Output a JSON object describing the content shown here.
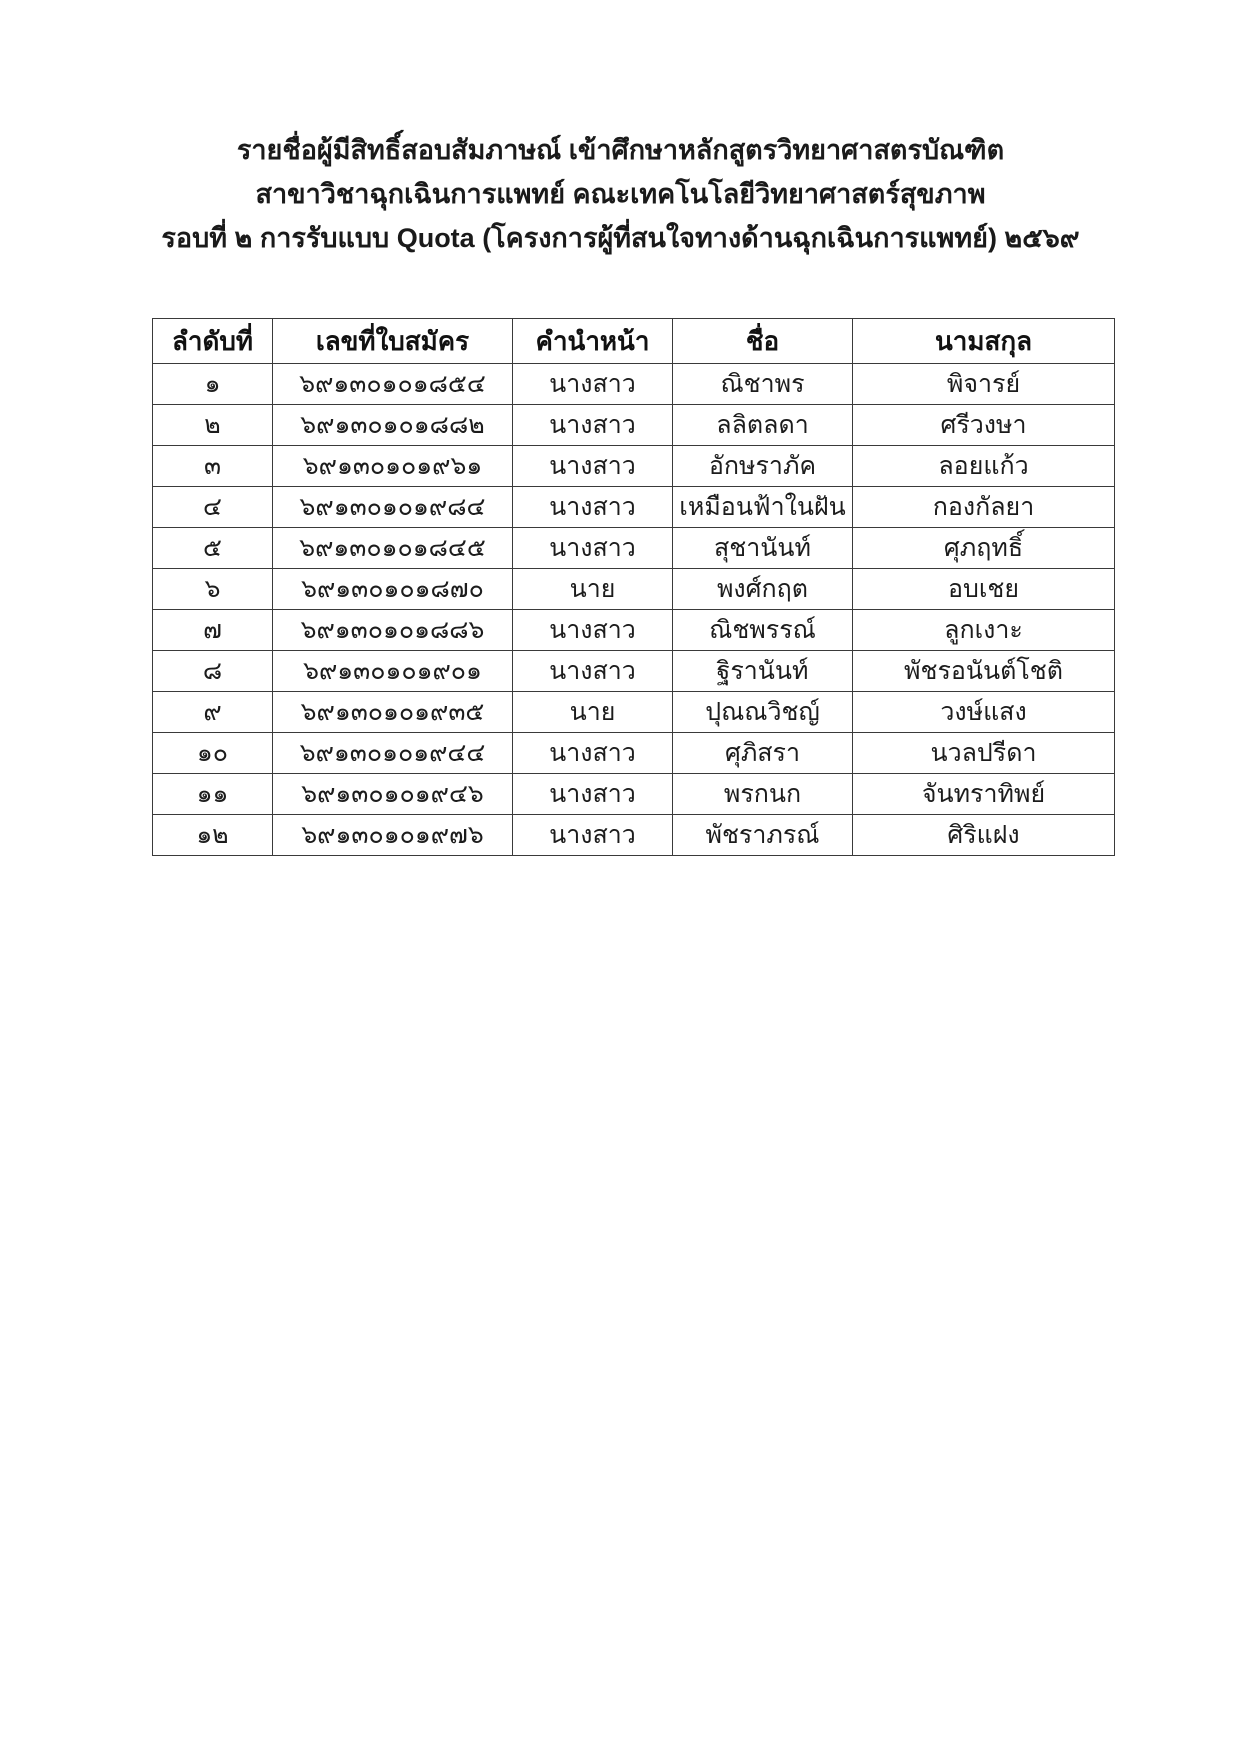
{
  "document": {
    "title_lines": [
      "รายชื่อผู้มีสิทธิ์สอบสัมภาษณ์ เข้าศึกษาหลักสูตรวิทยาศาสตรบัณฑิต",
      "สาขาวิชาฉุกเฉินการแพทย์ คณะเทคโนโลยีวิทยาศาสตร์สุขภาพ",
      "รอบที่ ๒ การรับแบบ Quota (โครงการผู้ที่สนใจทางด้านฉุกเฉินการแพทย์) ๒๕๖๙"
    ]
  },
  "table": {
    "headers": [
      "ลำดับที่",
      "เลขที่ใบสมัคร",
      "คำนำหน้า",
      "ชื่อ",
      "นามสกุล"
    ],
    "rows": [
      {
        "order": "๑",
        "application_no": "๖๙๑๓๐๑๐๑๘๕๔",
        "prefix": "นางสาว",
        "first_name": "ณิชาพร",
        "last_name": "พิจารย์"
      },
      {
        "order": "๒",
        "application_no": "๖๙๑๓๐๑๐๑๘๘๒",
        "prefix": "นางสาว",
        "first_name": "ลลิตลดา",
        "last_name": "ศรีวงษา"
      },
      {
        "order": "๓",
        "application_no": "๖๙๑๓๐๑๐๑๙๖๑",
        "prefix": "นางสาว",
        "first_name": "อักษราภัค",
        "last_name": "ลอยแก้ว"
      },
      {
        "order": "๔",
        "application_no": "๖๙๑๓๐๑๐๑๙๘๔",
        "prefix": "นางสาว",
        "first_name": "เหมือนฟ้าในฝัน",
        "last_name": "กองกัลยา"
      },
      {
        "order": "๕",
        "application_no": "๖๙๑๓๐๑๐๑๘๔๕",
        "prefix": "นางสาว",
        "first_name": "สุชานันท์",
        "last_name": "ศุภฤทธิ์"
      },
      {
        "order": "๖",
        "application_no": "๖๙๑๓๐๑๐๑๘๗๐",
        "prefix": "นาย",
        "first_name": "พงศ์กฤต",
        "last_name": "อบเชย"
      },
      {
        "order": "๗",
        "application_no": "๖๙๑๓๐๑๐๑๘๘๖",
        "prefix": "นางสาว",
        "first_name": "ณิชพรรณ์",
        "last_name": "ลูกเงาะ"
      },
      {
        "order": "๘",
        "application_no": "๖๙๑๓๐๑๐๑๙๐๑",
        "prefix": "นางสาว",
        "first_name": "ฐิรานันท์",
        "last_name": "พัชรอนันต์โชติ"
      },
      {
        "order": "๙",
        "application_no": "๖๙๑๓๐๑๐๑๙๓๕",
        "prefix": "นาย",
        "first_name": "ปุณณวิชญ์",
        "last_name": "วงษ์แสง"
      },
      {
        "order": "๑๐",
        "application_no": "๖๙๑๓๐๑๐๑๙๔๔",
        "prefix": "นางสาว",
        "first_name": "ศุภิสรา",
        "last_name": "นวลปรีดา"
      },
      {
        "order": "๑๑",
        "application_no": "๖๙๑๓๐๑๐๑๙๔๖",
        "prefix": "นางสาว",
        "first_name": "พรกนก",
        "last_name": "จันทราทิพย์"
      },
      {
        "order": "๑๒",
        "application_no": "๖๙๑๓๐๑๐๑๙๗๖",
        "prefix": "นางสาว",
        "first_name": "พัชราภรณ์",
        "last_name": "ศิริแฝง"
      }
    ]
  }
}
